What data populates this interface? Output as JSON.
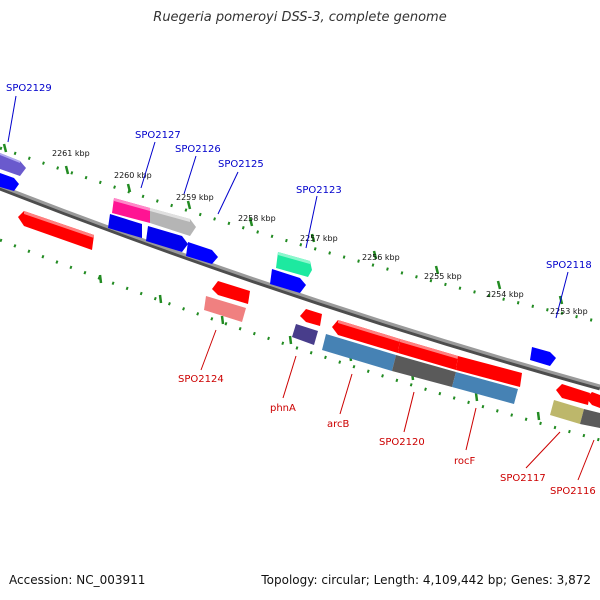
{
  "map": {
    "organism_title": "Ruegeria pomeroyi DSS-3, complete genome",
    "accession": "Accession: NC_003911",
    "summary": "Topology: circular; Length: 4,109,442 bp; Genes: 3,872"
  },
  "kbp_marks": [
    "2261 kbp",
    "2260 kbp",
    "2259 kbp",
    "2258 kbp",
    "2257 kbp",
    "2256 kbp",
    "2255 kbp",
    "2254 kbp",
    "2253 kbp"
  ],
  "gene_labels_plus": [
    "SPO2129",
    "SPO2127",
    "SPO2126",
    "SPO2125",
    "SPO2123",
    "SPO2118"
  ],
  "gene_labels_minus": [
    "SPO2124",
    "phnA",
    "arcB",
    "SPO2120",
    "rocF",
    "SPO2117",
    "SPO2116"
  ],
  "colors": {
    "backbone": "#808080",
    "tick": "#228b22",
    "cds_forward": "#0000ff",
    "cds_reverse": "#ff0000",
    "label_forward": "#0000cc",
    "label_reverse": "#cc0000"
  }
}
